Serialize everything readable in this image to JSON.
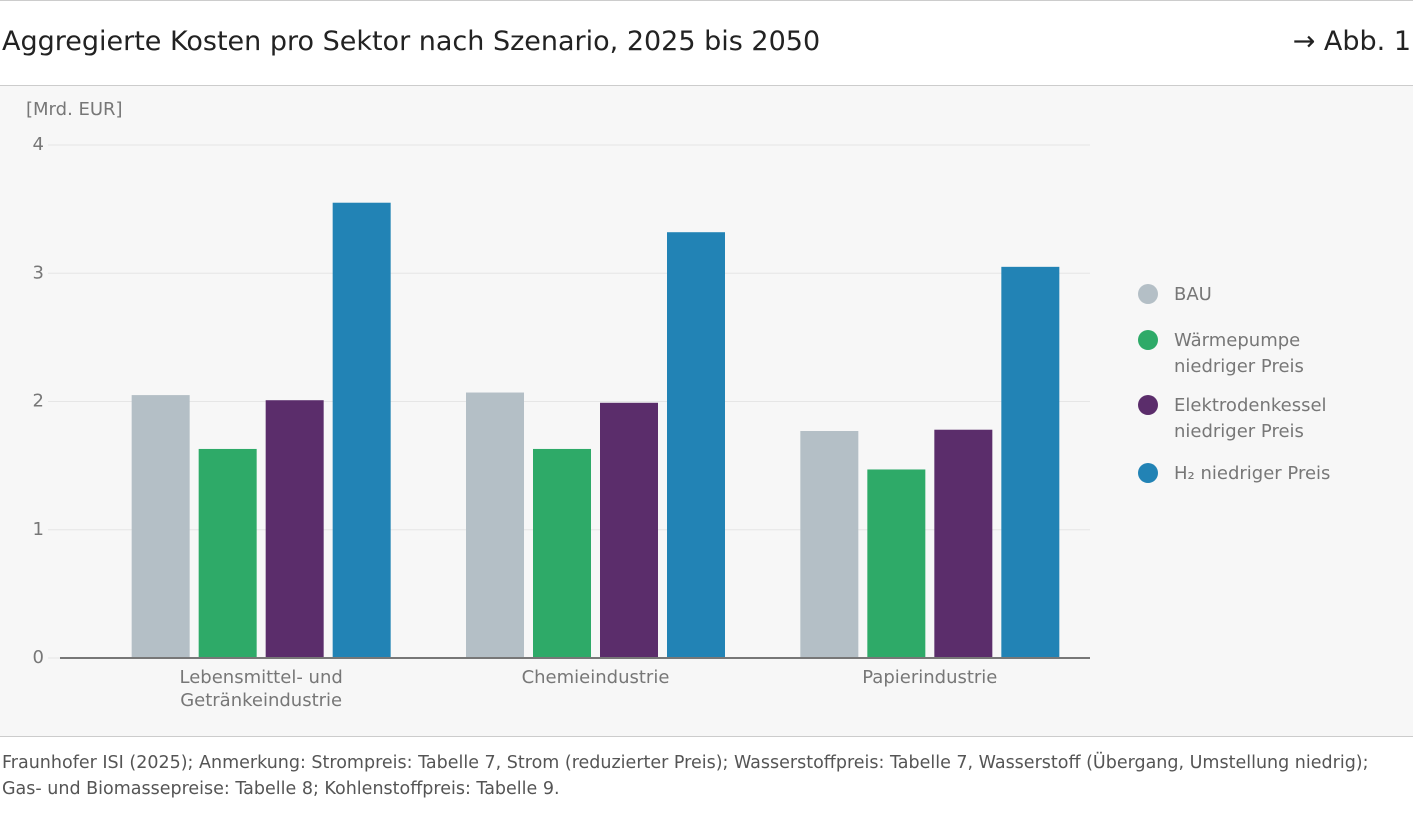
{
  "chart_data": {
    "type": "bar",
    "title": "Aggregierte Kosten pro Sektor nach Szenario, 2025 bis 2050",
    "figure_ref": "→ Abb. 1",
    "y_label": "[Mrd. EUR]",
    "categories": [
      "Lebensmittel- und Getränkeindustrie",
      "Chemieindustrie",
      "Papierindustrie"
    ],
    "series": [
      {
        "name": "BAU",
        "color": "#b4bfc6",
        "values": [
          2.05,
          2.07,
          1.77
        ]
      },
      {
        "name": "Wärmepumpe niedriger Preis",
        "color": "#2eaa68",
        "values": [
          1.63,
          1.63,
          1.47
        ]
      },
      {
        "name": "Elektrodenkessel niedriger Preis",
        "color": "#5b2d6b",
        "values": [
          2.01,
          1.99,
          1.78
        ]
      },
      {
        "name": "H₂ niedriger Preis",
        "color": "#2283b5",
        "values": [
          3.55,
          3.32,
          3.05
        ]
      }
    ],
    "ylim": [
      0,
      4
    ],
    "yticks": [
      0,
      1,
      2,
      3,
      4
    ],
    "grid": true,
    "legend": "right",
    "source": "Fraunhofer ISI (2025); Anmerkung: Strompreis: Tabelle 7, Strom (reduzierter Preis); Wasserstoffpreis: Tabelle 7, Wasserstoff (Übergang, Umstellung niedrig); Gas- und Biomassepreise: Tabelle 8; Kohlenstoffpreis: Tabelle 9."
  }
}
